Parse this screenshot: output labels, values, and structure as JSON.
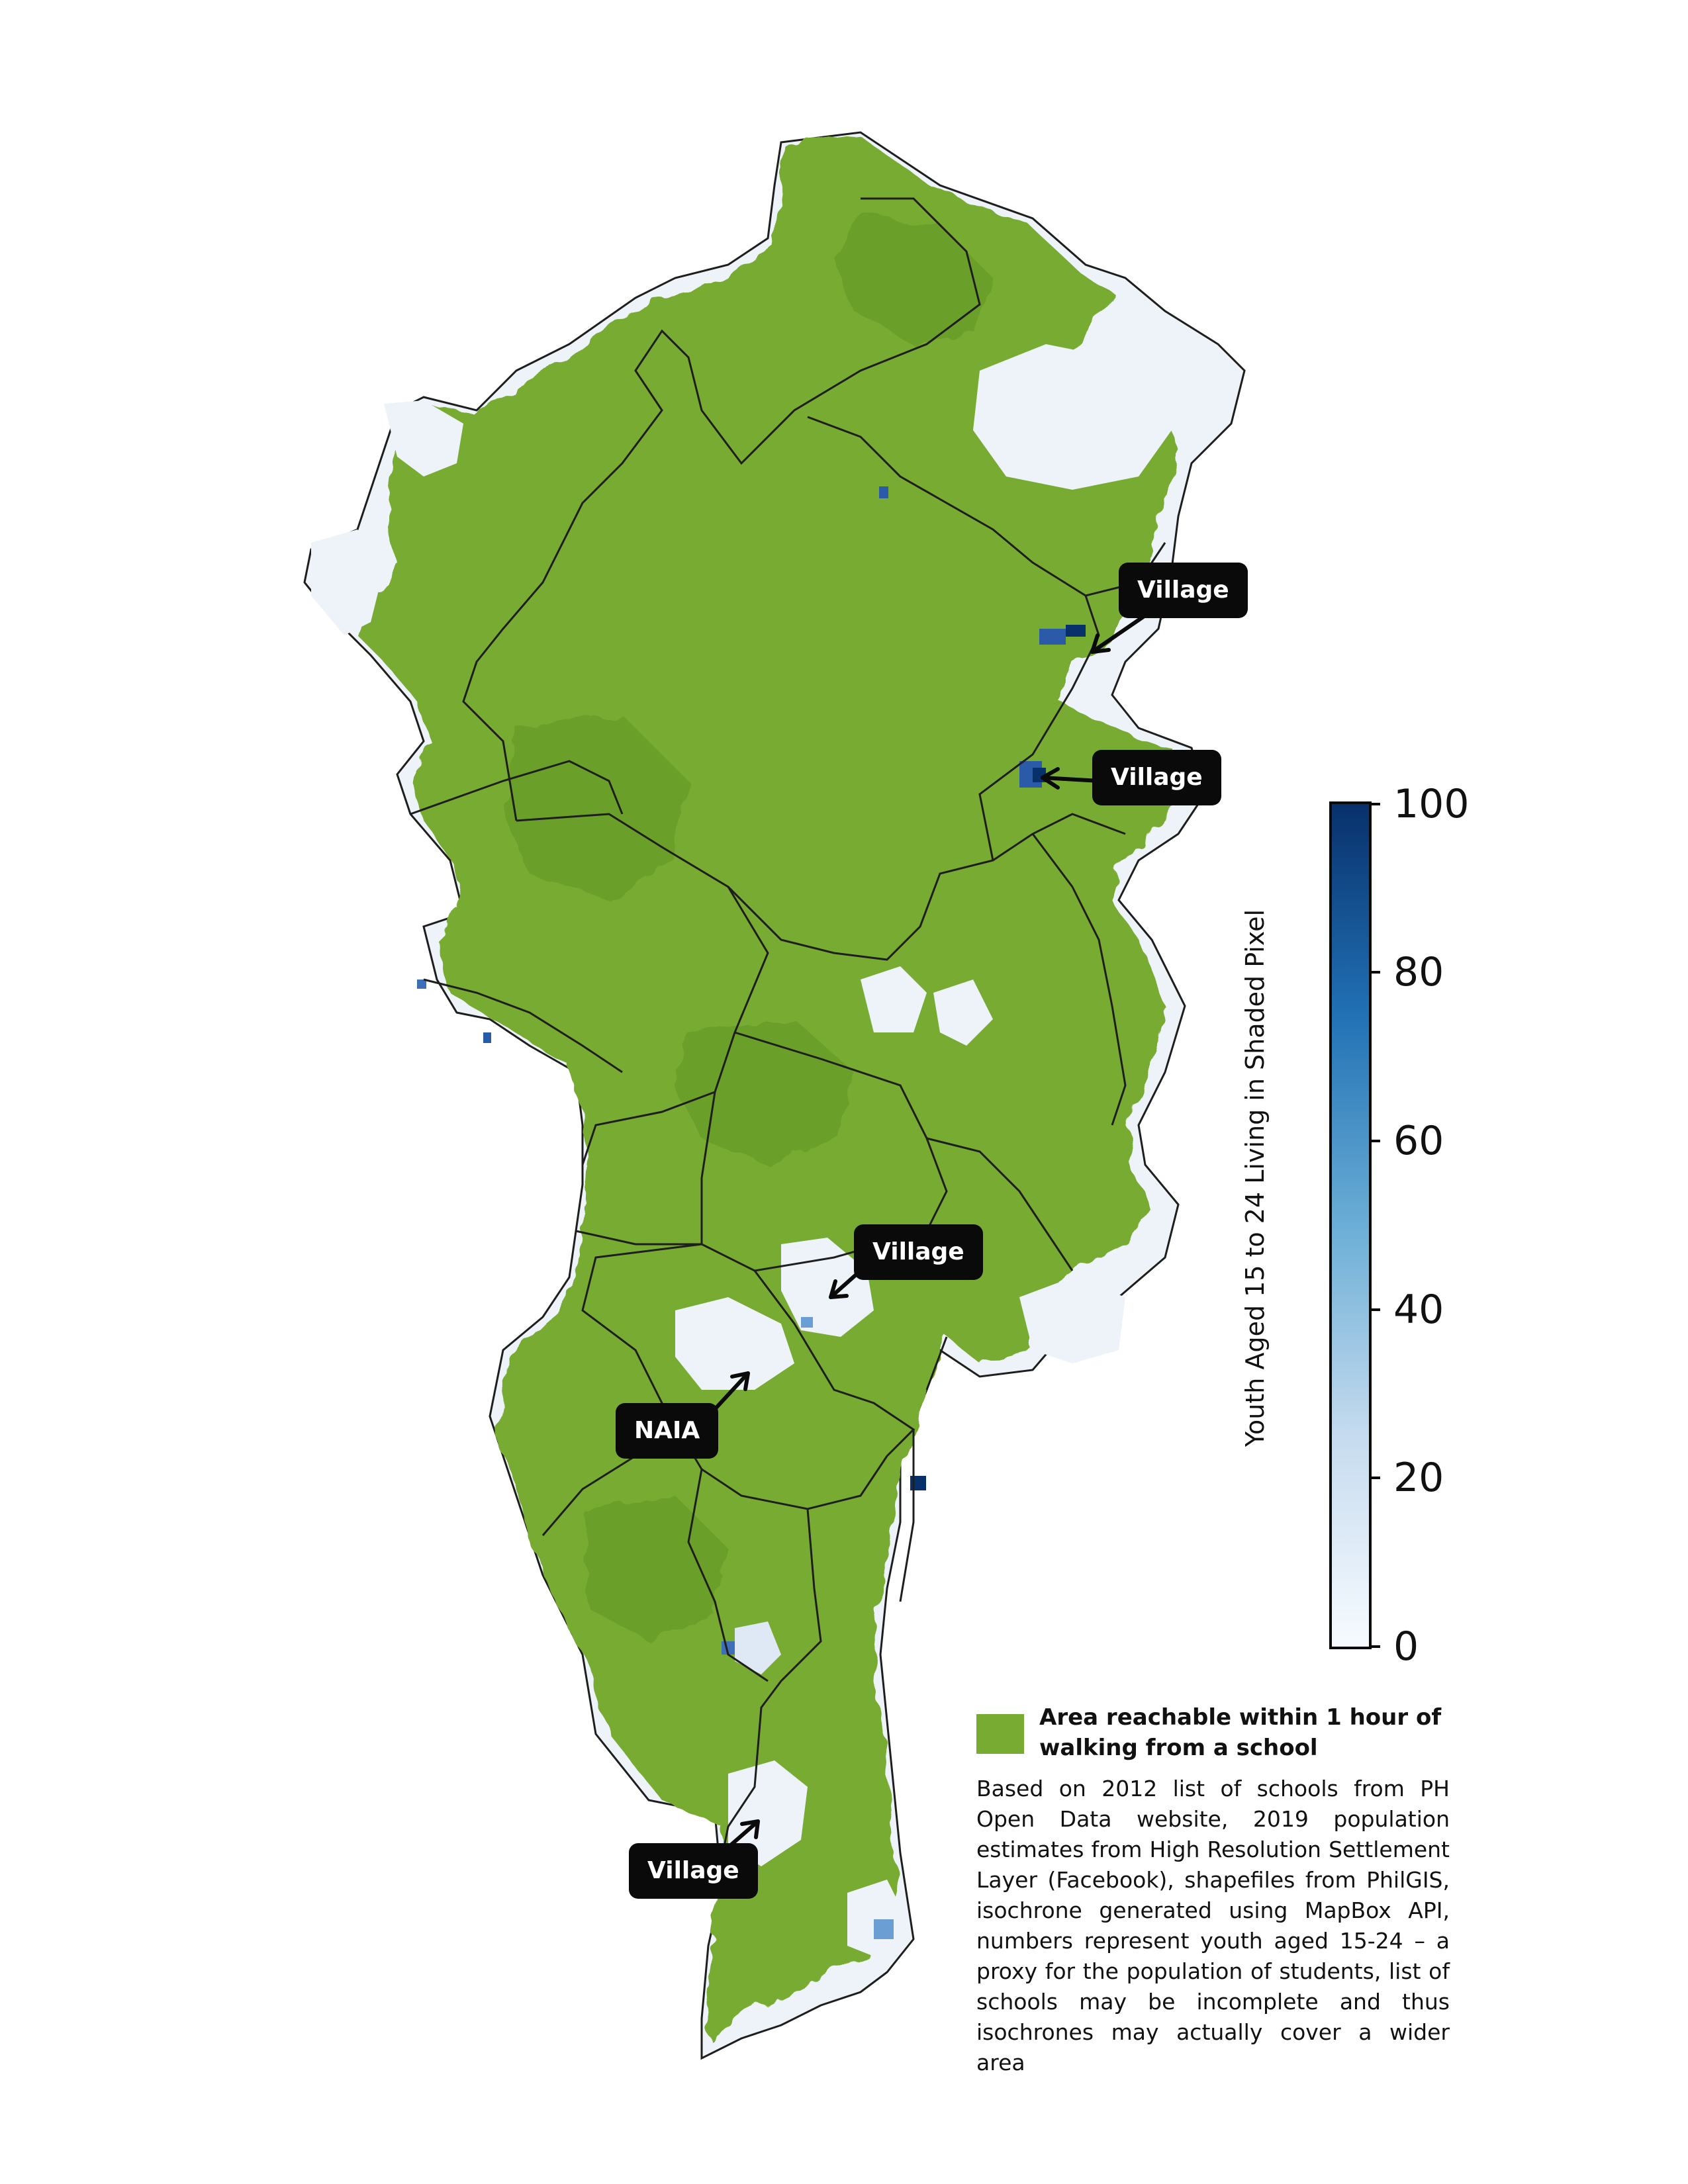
{
  "map": {
    "land_color": "#78ab32",
    "dark_land_color": "#6aa02c",
    "gap_color": "#eef3fa",
    "boundary_color": "#1e1e1e"
  },
  "callouts": [
    {
      "id": "village-1",
      "label": "Village"
    },
    {
      "id": "village-2",
      "label": "Village"
    },
    {
      "id": "village-3",
      "label": "Village"
    },
    {
      "id": "naia",
      "label": "NAIA"
    },
    {
      "id": "village-4",
      "label": "Village"
    }
  ],
  "colorbar": {
    "title": "Youth Aged 15 to 24 Living in Shaded Pixel",
    "ticks": [
      "0",
      "20",
      "40",
      "60",
      "80",
      "100"
    ],
    "min": 0,
    "max": 100,
    "color_low": "#f7fbff",
    "color_high": "#08306b"
  },
  "legend": {
    "swatch_color": "#78ab32",
    "label": "Area reachable within 1 hour of walking from a school"
  },
  "sources": "Based on 2012 list of schools from PH Open Data website, 2019 population estimates from High Resolution Settlement Layer (Facebook), shapefiles from PhilGIS, isochrone generated using MapBox API, numbers represent youth aged 15-24 – a proxy for the population of students, list of schools may be incomplete and thus isochrones may actually cover a wider area"
}
